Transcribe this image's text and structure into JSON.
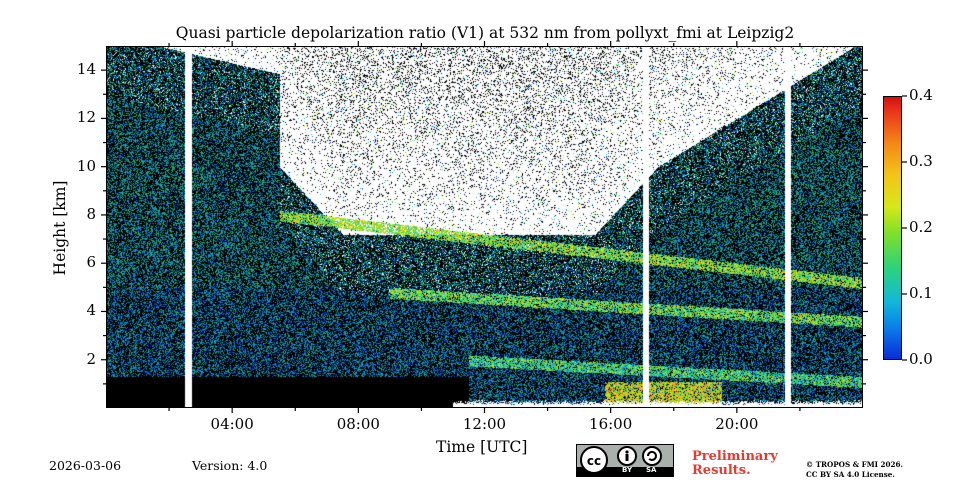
{
  "chart_data": {
    "type": "heatmap",
    "title": "Quasi particle depolarization ratio (V1) at 532 nm from pollyxt_fmi at Leipzig2",
    "xlabel": "Time [UTC]",
    "ylabel": "Height [km]",
    "xlim_hours": [
      0,
      24
    ],
    "ylim_km": [
      0,
      15
    ],
    "x_ticks": [
      {
        "hour": 2,
        "label": ""
      },
      {
        "hour": 4,
        "label": "04:00"
      },
      {
        "hour": 6,
        "label": ""
      },
      {
        "hour": 8,
        "label": "08:00"
      },
      {
        "hour": 10,
        "label": ""
      },
      {
        "hour": 12,
        "label": "12:00"
      },
      {
        "hour": 14,
        "label": ""
      },
      {
        "hour": 16,
        "label": "16:00"
      },
      {
        "hour": 18,
        "label": ""
      },
      {
        "hour": 20,
        "label": "20:00"
      },
      {
        "hour": 22,
        "label": ""
      }
    ],
    "y_ticks": [
      {
        "km": 2,
        "label": "2"
      },
      {
        "km": 4,
        "label": "4"
      },
      {
        "km": 6,
        "label": "6"
      },
      {
        "km": 8,
        "label": "8"
      },
      {
        "km": 10,
        "label": "10"
      },
      {
        "km": 12,
        "label": "12"
      },
      {
        "km": 14,
        "label": "14"
      }
    ],
    "colorbar": {
      "range": [
        0,
        0.4
      ],
      "ticks": [
        {
          "value": 0.0,
          "label": "0.0"
        },
        {
          "value": 0.1,
          "label": "0.1"
        },
        {
          "value": 0.2,
          "label": "0.2"
        },
        {
          "value": 0.3,
          "label": "0.3"
        },
        {
          "value": 0.4,
          "label": "0.4"
        }
      ]
    },
    "data_gaps_hours": [
      2.6,
      17.1,
      21.6
    ],
    "layers": [
      {
        "name": "upper layer",
        "start_h": 5.5,
        "end_h": 24,
        "top_km_start": 8.2,
        "top_km_end": 5.4,
        "depol": 0.2
      },
      {
        "name": "middle layer",
        "start_h": 9,
        "end_h": 24,
        "top_km_start": 5.0,
        "top_km_end": 3.8,
        "depol": 0.18
      },
      {
        "name": "boundary layer",
        "start_h": 11.5,
        "end_h": 24,
        "top_km_start": 2.2,
        "top_km_end": 1.3,
        "depol": 0.15
      },
      {
        "name": "surface aerosol",
        "start_h": 15.8,
        "end_h": 19.5,
        "top_km_start": 1.1,
        "top_km_end": 1.1,
        "depol": 0.25
      }
    ]
  },
  "footer": {
    "date": "2026-03-06",
    "version": "Version: 4.0",
    "preliminary_line1": "Preliminary",
    "preliminary_line2": "Results.",
    "copyright_line1": "© TROPOS & FMI 2026.",
    "copyright_line2": "CC BY SA 4.0 License.",
    "license_badge_by": "BY",
    "license_badge_sa": "SA"
  }
}
